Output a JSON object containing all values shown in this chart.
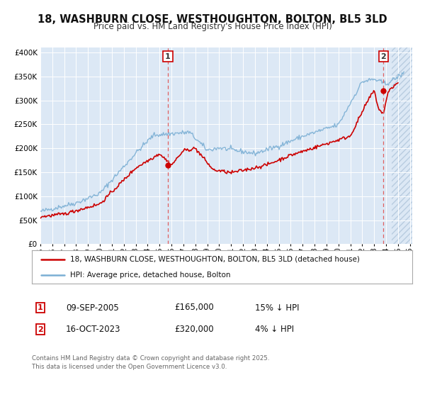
{
  "title": "18, WASHBURN CLOSE, WESTHOUGHTON, BOLTON, BL5 3LD",
  "subtitle": "Price paid vs. HM Land Registry's House Price Index (HPI)",
  "hpi_color": "#7bafd4",
  "price_color": "#cc0000",
  "marker1_date": 2005.69,
  "marker1_price": 165000,
  "marker1_label": "1",
  "marker1_text": "09-SEP-2005",
  "marker1_price_str": "£165,000",
  "marker1_hpi_str": "15% ↓ HPI",
  "marker2_date": 2023.79,
  "marker2_price": 320000,
  "marker2_label": "2",
  "marker2_text": "16-OCT-2023",
  "marker2_price_str": "£320,000",
  "marker2_hpi_str": "4% ↓ HPI",
  "legend_line1": "18, WASHBURN CLOSE, WESTHOUGHTON, BOLTON, BL5 3LD (detached house)",
  "legend_line2": "HPI: Average price, detached house, Bolton",
  "footer": "Contains HM Land Registry data © Crown copyright and database right 2025.\nThis data is licensed under the Open Government Licence v3.0.",
  "ylim": [
    0,
    410000
  ],
  "xlim_start": 1995.0,
  "xlim_end": 2026.2,
  "data_end": 2025.0,
  "plot_bg_color": "#dce8f5",
  "hatch_color": "#c8d8e8"
}
